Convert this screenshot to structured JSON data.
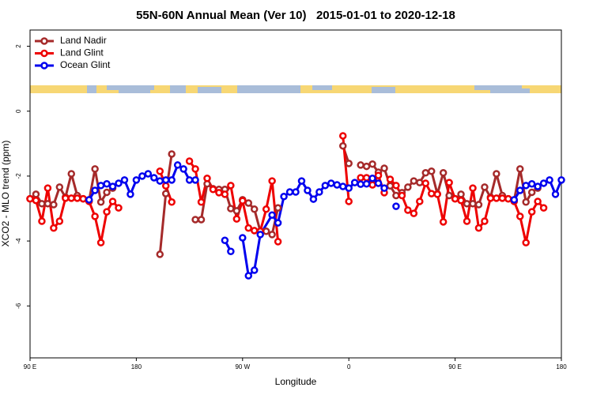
{
  "chart_data": {
    "type": "line",
    "title": "55N-60N Annual Mean (Ver 10)   2015-01-01 to 2020-12-18",
    "x_label": "Longitude",
    "y_label": "XCO2 - MLO trend (ppm)",
    "xlim": [
      90,
      540
    ],
    "ylim": [
      -7.6,
      2.5
    ],
    "xticks": [
      {
        "value": 90,
        "label": "90 E"
      },
      180,
      {
        "value": 270,
        "label": "90 W"
      },
      {
        "value": 360,
        "label": "0"
      },
      {
        "value": 450,
        "label": "90 E"
      },
      {
        "value": 540,
        "label": "180"
      }
    ],
    "yticks": [
      2,
      0,
      -2,
      -4,
      -6
    ],
    "grid": false,
    "legend": "top-left",
    "series": [
      {
        "name": "Land Nadir",
        "color": "#a52a2a",
        "x": [
          90,
          95,
          100,
          105,
          110,
          115,
          120,
          125,
          130,
          135,
          140,
          145,
          150,
          155,
          160,
          180,
          200,
          205,
          210,
          220,
          230,
          235,
          240,
          245,
          250,
          255,
          260,
          265,
          270,
          275,
          280,
          285,
          290,
          295,
          300,
          330,
          355,
          360,
          365,
          370,
          375,
          380,
          385,
          390,
          395,
          400,
          405,
          410,
          415,
          420,
          425,
          430,
          435,
          440,
          445,
          450,
          455,
          460,
          465,
          470,
          475,
          480,
          485,
          490,
          495,
          500,
          505,
          510,
          515,
          520
        ],
        "values": [
          -2.7,
          -2.56,
          -2.85,
          -2.85,
          -2.88,
          -2.34,
          -2.65,
          -1.93,
          -2.6,
          -2.7,
          -2.75,
          -1.78,
          -2.8,
          -2.5,
          -2.37,
          null,
          -4.41,
          -2.54,
          -1.32,
          null,
          -3.34,
          -3.34,
          -2.24,
          -2.39,
          -2.41,
          -2.41,
          -3.0,
          -3.07,
          -2.73,
          -2.83,
          -3.02,
          -3.7,
          -3.7,
          -3.8,
          -2.98,
          null,
          -1.07,
          -1.61,
          null,
          -1.66,
          -1.7,
          -1.63,
          -1.88,
          -1.76,
          -2.3,
          -2.6,
          -2.51,
          -2.34,
          -2.15,
          -2.2,
          -1.9,
          -1.85,
          -2.55,
          -1.9,
          -2.6,
          -2.7,
          -2.56,
          -2.85,
          -2.85,
          -2.88,
          -2.34,
          -2.65,
          -1.93,
          -2.6,
          -2.7,
          -2.75,
          -1.78,
          -2.8,
          -2.5,
          -2.37
        ]
      },
      {
        "name": "Land Glint",
        "color": "#ee0000",
        "x": [
          90,
          95,
          100,
          105,
          110,
          115,
          120,
          125,
          130,
          135,
          140,
          145,
          150,
          155,
          160,
          165,
          180,
          200,
          205,
          210,
          220,
          225,
          230,
          235,
          240,
          245,
          250,
          255,
          260,
          265,
          270,
          275,
          280,
          285,
          290,
          295,
          300,
          330,
          355,
          360,
          365,
          370,
          375,
          380,
          385,
          390,
          395,
          400,
          405,
          410,
          415,
          420,
          425,
          430,
          435,
          440,
          445,
          450,
          455,
          460,
          465,
          470,
          475,
          480,
          485,
          490,
          495,
          500,
          505,
          510,
          515,
          520,
          525
        ],
        "values": [
          -2.7,
          -2.75,
          -3.39,
          -2.37,
          -3.6,
          -3.39,
          -2.68,
          -2.68,
          -2.68,
          -2.7,
          -2.78,
          -3.24,
          -4.05,
          -3.1,
          -2.78,
          -2.98,
          null,
          -1.85,
          -2.3,
          -2.8,
          null,
          -1.54,
          -1.78,
          -2.8,
          -2.07,
          -2.41,
          -2.51,
          -2.56,
          -2.29,
          -3.32,
          -2.76,
          -3.6,
          -3.68,
          -3.7,
          -3.02,
          -2.15,
          -4.02,
          null,
          -0.76,
          -2.78,
          null,
          -2.05,
          -2.05,
          -2.27,
          -1.98,
          -2.51,
          -2.1,
          -2.29,
          -2.6,
          -3.05,
          -3.15,
          -2.78,
          -2.22,
          -2.54,
          -2.56,
          -3.41,
          -2.2,
          -2.7,
          -2.75,
          -3.39,
          -2.37,
          -3.6,
          -3.39,
          -2.68,
          -2.68,
          -2.68,
          -2.7,
          -2.78,
          -3.24,
          -4.05,
          -3.1,
          -2.78,
          -2.98
        ]
      },
      {
        "name": "Ocean Glint",
        "color": "#0000ee",
        "x": [
          140,
          145,
          150,
          155,
          160,
          165,
          170,
          175,
          180,
          185,
          190,
          195,
          200,
          205,
          210,
          215,
          220,
          225,
          230,
          235,
          255,
          260,
          265,
          270,
          275,
          280,
          285,
          295,
          300,
          305,
          310,
          315,
          320,
          325,
          330,
          335,
          340,
          345,
          350,
          355,
          360,
          365,
          370,
          375,
          380,
          385,
          390,
          395,
          400,
          405,
          500,
          505,
          510,
          515,
          520,
          525,
          530,
          535,
          540
        ],
        "values": [
          -2.73,
          -2.44,
          -2.29,
          -2.24,
          -2.32,
          -2.22,
          -2.12,
          -2.56,
          -2.12,
          -2.0,
          -1.93,
          -2.05,
          -2.15,
          -2.12,
          -2.12,
          -1.66,
          -1.78,
          -2.12,
          -2.12,
          null,
          -3.98,
          -4.32,
          null,
          -3.9,
          -5.07,
          -4.9,
          -3.8,
          -3.2,
          -3.44,
          -2.63,
          -2.49,
          -2.49,
          -2.15,
          -2.44,
          -2.71,
          -2.49,
          -2.29,
          -2.22,
          -2.27,
          -2.32,
          -2.37,
          -2.2,
          -2.25,
          -2.24,
          -2.07,
          -2.22,
          -2.37,
          null,
          -2.93,
          null,
          -2.73,
          -2.44,
          -2.29,
          -2.24,
          -2.32,
          -2.22,
          -2.12,
          -2.56,
          -2.12
        ]
      }
    ]
  }
}
